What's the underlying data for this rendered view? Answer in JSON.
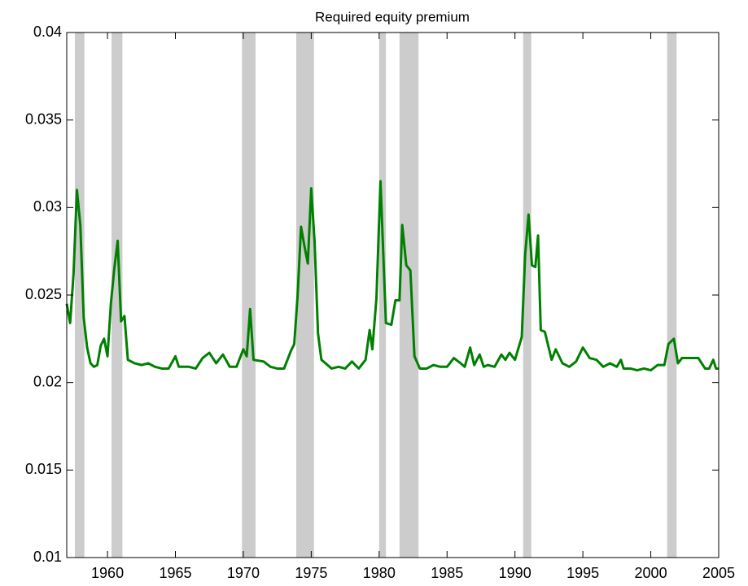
{
  "chart_data": {
    "type": "line",
    "title": "Required equity premium",
    "x": [
      1957.0,
      1957.25,
      1957.5,
      1957.75,
      1958.0,
      1958.25,
      1958.5,
      1958.75,
      1959.0,
      1959.25,
      1959.5,
      1959.75,
      1960.0,
      1960.25,
      1960.5,
      1960.75,
      1961.0,
      1961.25,
      1961.5,
      1962,
      1962.5,
      1963,
      1963.5,
      1964,
      1964.5,
      1965,
      1965.25,
      1966,
      1966.5,
      1967,
      1967.5,
      1968,
      1968.5,
      1969,
      1969.5,
      1970,
      1970.25,
      1970.5,
      1970.75,
      1971.5,
      1972,
      1972.5,
      1973,
      1973.5,
      1973.75,
      1974.0,
      1974.25,
      1974.5,
      1974.75,
      1975.0,
      1975.25,
      1975.5,
      1975.75,
      1976.5,
      1977,
      1977.5,
      1978,
      1978.5,
      1979.0,
      1979.3,
      1979.5,
      1979.8,
      1980.1,
      1980.5,
      1980.9,
      1981.2,
      1981.5,
      1981.7,
      1982.0,
      1982.3,
      1982.6,
      1983,
      1983.5,
      1984,
      1984.5,
      1985,
      1985.5,
      1986,
      1986.3,
      1986.7,
      1987,
      1987.4,
      1987.7,
      1988,
      1988.5,
      1989,
      1989.3,
      1989.6,
      1990,
      1990.5,
      1990.75,
      1991.0,
      1991.25,
      1991.5,
      1991.7,
      1991.9,
      1992.2,
      1992.7,
      1993,
      1993.5,
      1994,
      1994.5,
      1995,
      1995.5,
      1996,
      1996.5,
      1997,
      1997.5,
      1997.8,
      1998,
      1998.5,
      1999,
      1999.5,
      2000,
      2000.5,
      2001,
      2001.3,
      2001.7,
      2002,
      2002.3,
      2003,
      2003.5,
      2004,
      2004.3,
      2004.6,
      2004.8,
      2005
    ],
    "values": [
      0.0245,
      0.0234,
      0.0262,
      0.031,
      0.029,
      0.0237,
      0.022,
      0.0211,
      0.0209,
      0.021,
      0.0221,
      0.0225,
      0.0215,
      0.0245,
      0.0265,
      0.0281,
      0.0235,
      0.0238,
      0.0213,
      0.0211,
      0.021,
      0.0211,
      0.0209,
      0.0208,
      0.0208,
      0.0215,
      0.0209,
      0.0209,
      0.0208,
      0.0214,
      0.0217,
      0.0211,
      0.0216,
      0.0209,
      0.0209,
      0.0219,
      0.0215,
      0.0242,
      0.0213,
      0.0212,
      0.0209,
      0.0208,
      0.0208,
      0.0218,
      0.0222,
      0.025,
      0.0289,
      0.0278,
      0.0268,
      0.0311,
      0.028,
      0.0228,
      0.0213,
      0.0208,
      0.0209,
      0.0208,
      0.0212,
      0.0208,
      0.0213,
      0.023,
      0.0219,
      0.0248,
      0.0315,
      0.0234,
      0.0233,
      0.0247,
      0.0247,
      0.029,
      0.0267,
      0.0264,
      0.0215,
      0.0208,
      0.0208,
      0.021,
      0.0209,
      0.0209,
      0.0214,
      0.0211,
      0.0209,
      0.022,
      0.021,
      0.0216,
      0.0209,
      0.021,
      0.0209,
      0.0216,
      0.0213,
      0.0217,
      0.0213,
      0.0226,
      0.0273,
      0.0296,
      0.0267,
      0.0266,
      0.0284,
      0.023,
      0.0229,
      0.0213,
      0.0219,
      0.0211,
      0.0209,
      0.0212,
      0.022,
      0.0214,
      0.0213,
      0.0209,
      0.0211,
      0.0209,
      0.0213,
      0.0208,
      0.0208,
      0.0207,
      0.0208,
      0.0207,
      0.021,
      0.021,
      0.0222,
      0.0225,
      0.0211,
      0.0214,
      0.0214,
      0.0214,
      0.0208,
      0.0208,
      0.0213,
      0.0208,
      0.0208
    ],
    "color": "#008000",
    "shaded_regions": [
      [
        1957.6,
        1958.3
      ],
      [
        1960.3,
        1961.1
      ],
      [
        1969.9,
        1970.9
      ],
      [
        1973.9,
        1975.2
      ],
      [
        1980.0,
        1980.5
      ],
      [
        1981.5,
        1982.9
      ],
      [
        1990.6,
        1991.2
      ],
      [
        2001.2,
        2001.9
      ]
    ],
    "shade_color": "#cccccc",
    "xlim": [
      1957,
      2005
    ],
    "ylim": [
      0.01,
      0.04
    ],
    "xticks": [
      1960,
      1965,
      1970,
      1975,
      1980,
      1985,
      1990,
      1995,
      2000,
      2005
    ],
    "yticks": [
      0.01,
      0.015,
      0.02,
      0.025,
      0.03,
      0.035,
      0.04
    ]
  }
}
